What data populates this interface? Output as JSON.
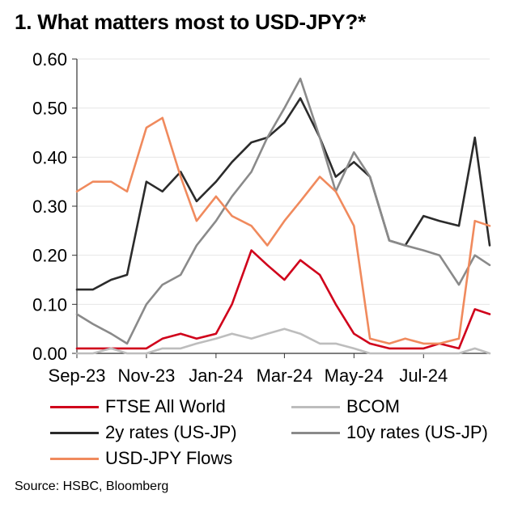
{
  "header": {
    "title": "1. What matters most to USD-JPY?*"
  },
  "footer": {
    "source": "Source: HSBC, Bloomberg"
  },
  "chart_data": {
    "type": "line",
    "title": "1. What matters most to USD-JPY?*",
    "xlabel": "",
    "ylabel": "",
    "ylim": [
      0,
      0.6
    ],
    "y_ticks": [
      "0.00",
      "0.10",
      "0.20",
      "0.30",
      "0.40",
      "0.50",
      "0.60"
    ],
    "x_tick_labels": [
      "Sep-23",
      "Nov-23",
      "Jan-24",
      "Mar-24",
      "May-24",
      "Jul-24"
    ],
    "x": [
      "2023-09-01",
      "2023-09-15",
      "2023-10-01",
      "2023-10-15",
      "2023-11-01",
      "2023-11-15",
      "2023-12-01",
      "2023-12-15",
      "2024-01-01",
      "2024-01-15",
      "2024-02-01",
      "2024-02-15",
      "2024-03-01",
      "2024-03-15",
      "2024-04-01",
      "2024-04-15",
      "2024-05-01",
      "2024-05-15",
      "2024-06-01",
      "2024-06-15",
      "2024-07-01",
      "2024-07-15",
      "2024-08-01",
      "2024-08-15",
      "2024-08-28"
    ],
    "grid": true,
    "legend_position": "bottom",
    "series": [
      {
        "name": "FTSE All World",
        "color": "#d0021b",
        "values": [
          0.01,
          0.01,
          0.01,
          0.01,
          0.01,
          0.03,
          0.04,
          0.03,
          0.04,
          0.1,
          0.21,
          0.18,
          0.15,
          0.19,
          0.16,
          0.1,
          0.04,
          0.02,
          0.01,
          0.01,
          0.01,
          0.02,
          0.01,
          0.09,
          0.08
        ]
      },
      {
        "name": "BCOM",
        "color": "#bdbdbd",
        "values": [
          0.0,
          0.0,
          0.01,
          0.0,
          0.0,
          0.01,
          0.01,
          0.02,
          0.03,
          0.04,
          0.03,
          0.04,
          0.05,
          0.04,
          0.02,
          0.02,
          0.01,
          0.0,
          0.0,
          0.0,
          0.0,
          0.0,
          0.0,
          0.01,
          0.0
        ]
      },
      {
        "name": "2y rates (US-JP)",
        "color": "#2b2b2b",
        "values": [
          0.13,
          0.13,
          0.15,
          0.16,
          0.35,
          0.33,
          0.37,
          0.31,
          0.35,
          0.39,
          0.43,
          0.44,
          0.47,
          0.52,
          0.44,
          0.36,
          0.39,
          0.36,
          0.23,
          0.22,
          0.28,
          0.27,
          0.26,
          0.44,
          0.22
        ]
      },
      {
        "name": "10y rates (US-JP)",
        "color": "#8a8a8a",
        "values": [
          0.08,
          0.06,
          0.04,
          0.02,
          0.1,
          0.14,
          0.16,
          0.22,
          0.27,
          0.32,
          0.37,
          0.44,
          0.5,
          0.56,
          0.44,
          0.33,
          0.41,
          0.36,
          0.23,
          0.22,
          0.21,
          0.2,
          0.14,
          0.2,
          0.18
        ]
      },
      {
        "name": "USD-JPY Flows",
        "color": "#f08a5d",
        "values": [
          0.33,
          0.35,
          0.35,
          0.33,
          0.46,
          0.48,
          0.36,
          0.27,
          0.32,
          0.28,
          0.26,
          0.22,
          0.27,
          0.31,
          0.36,
          0.33,
          0.26,
          0.03,
          0.02,
          0.03,
          0.02,
          0.02,
          0.03,
          0.27,
          0.26
        ]
      }
    ]
  }
}
